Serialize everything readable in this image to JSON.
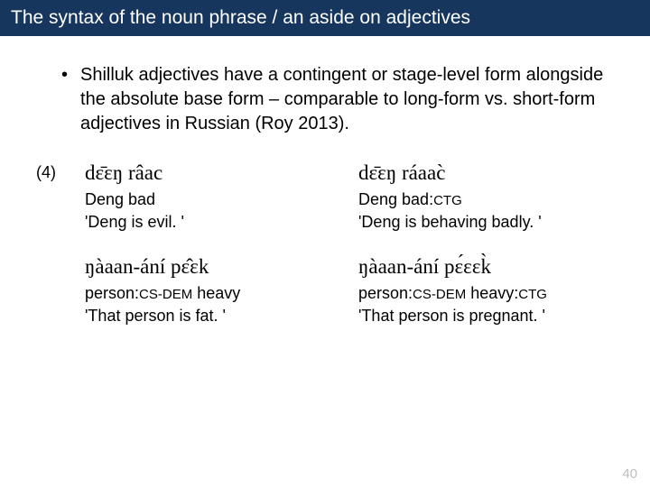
{
  "title": "The syntax of the noun phrase / an aside on adjectives",
  "bullet": "Shilluk adjectives have a contingent or stage-level form alongside the absolute base form – comparable to long-form vs. short-form adjectives in Russian (Roy 2013).",
  "example_number": "(4)",
  "ex": {
    "a": {
      "shilluk": "dɛ̄ɛŋ  râac",
      "gloss_pre": "Deng  bad",
      "gloss_sc": "",
      "translation": "'Deng is evil. '"
    },
    "b": {
      "shilluk": "dɛ̄ɛŋ  ráaac̀",
      "gloss_pre": "Deng  bad:",
      "gloss_sc": "CTG",
      "translation": "'Deng is behaving badly. '"
    },
    "c": {
      "shilluk": "ŋàaan-ání    pɛ̂ɛk",
      "gloss_pre": "person:",
      "gloss_sc": "CS-DEM",
      "gloss_post": " heavy",
      "translation": "'That person is fat. '"
    },
    "d": {
      "shilluk": "ŋàaan-ání    pɛ́ɛɛk̀",
      "gloss_pre": "person:",
      "gloss_sc": "CS-DEM",
      "gloss_post": " heavy:",
      "gloss_sc2": "CTG",
      "translation": "'That person is pregnant. '"
    }
  },
  "page_number": "40",
  "colors": {
    "titlebar_bg": "#16365d",
    "titlebar_text": "#ffffff",
    "body_bg": "#ffffff",
    "text": "#000000",
    "page_num": "#bfbfbf"
  }
}
